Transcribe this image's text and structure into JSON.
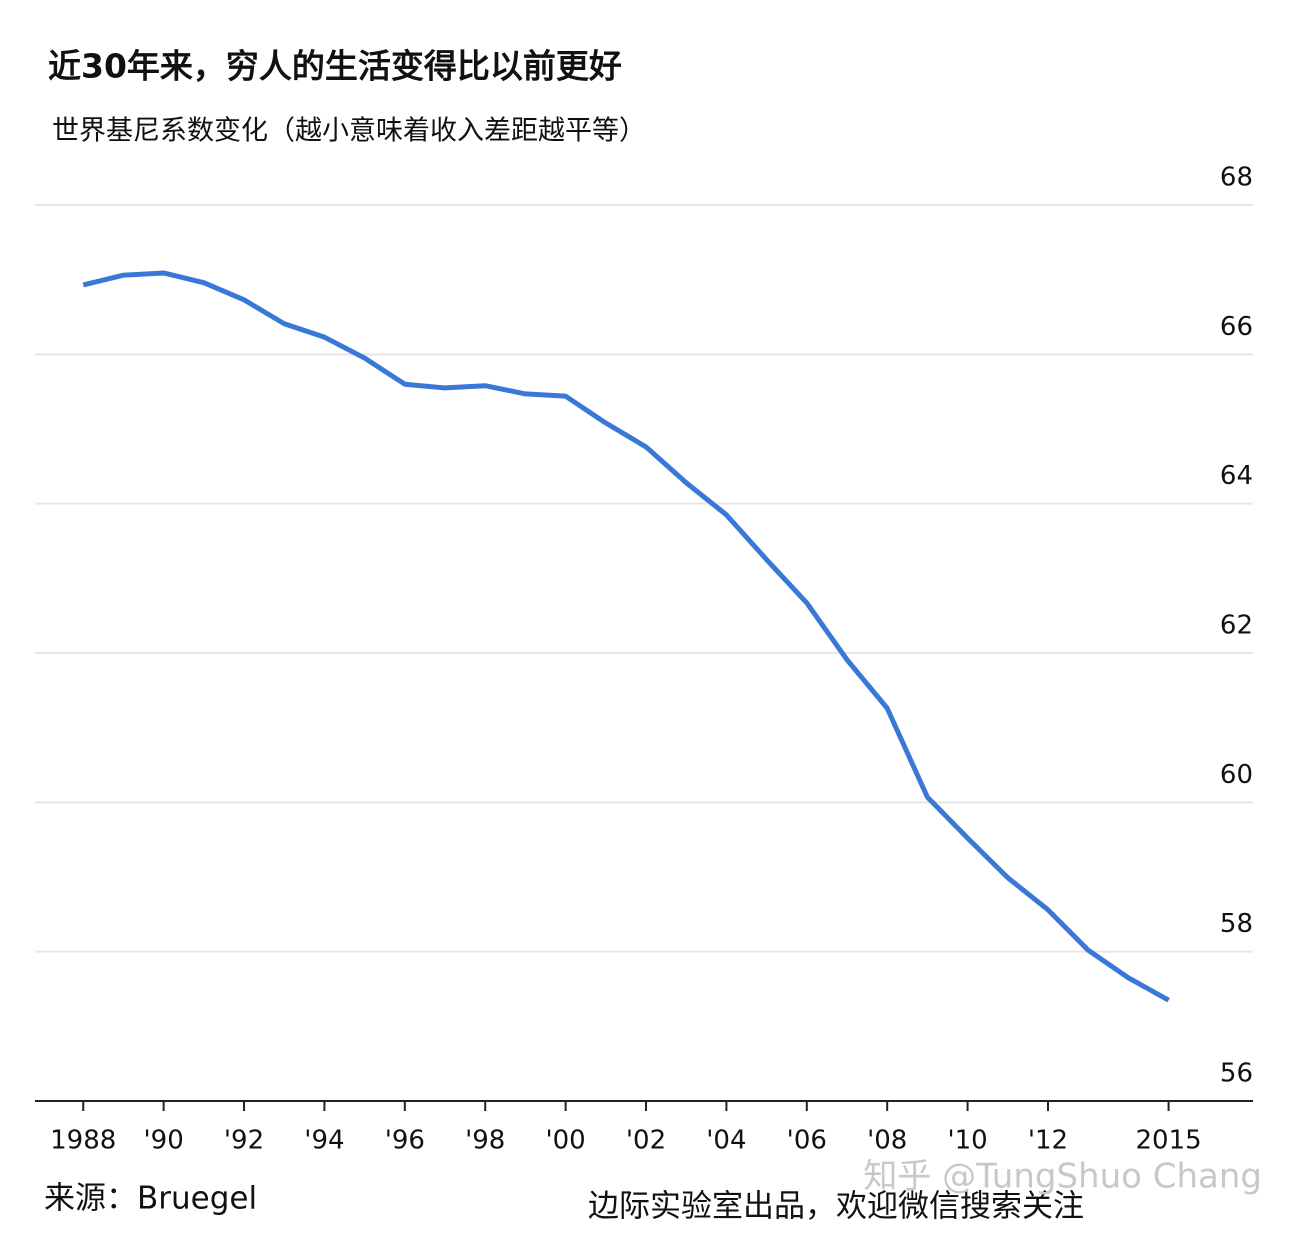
{
  "chart_data": {
    "type": "line",
    "title": "近30年来，穷人的生活变得比以前更好",
    "subtitle": "世界基尼系数变化（越小意味着收入差距越平等）",
    "source": "来源：Bruegel",
    "footer": "边际实验室出品，欢迎微信搜索关注",
    "watermark": "知乎 @TungShuo Chang",
    "x": [
      1988,
      1989,
      1990,
      1991,
      1992,
      1993,
      1994,
      1995,
      1996,
      1997,
      1998,
      1999,
      2000,
      2001,
      2002,
      2003,
      2004,
      2005,
      2006,
      2007,
      2008,
      2009,
      2010,
      2011,
      2012,
      2013,
      2014,
      2015
    ],
    "series": [
      {
        "color": "#3a78d8",
        "values": [
          66.93,
          67.06,
          67.09,
          66.96,
          66.73,
          66.41,
          66.23,
          65.95,
          65.6,
          65.55,
          65.58,
          65.47,
          65.44,
          65.08,
          64.76,
          64.28,
          63.85,
          63.25,
          62.67,
          61.91,
          61.26,
          60.07,
          59.52,
          58.99,
          58.56,
          58.02,
          57.65,
          57.35
        ]
      }
    ],
    "xlim": [
      1986.8,
      2017.1
    ],
    "xticks": [
      1988,
      {
        "value": 1990,
        "label": "'90"
      },
      {
        "value": 1992,
        "label": "'92"
      },
      {
        "value": 1994,
        "label": "'94"
      },
      {
        "value": 1996,
        "label": "'96"
      },
      {
        "value": 1998,
        "label": "'98"
      },
      {
        "value": 2000,
        "label": "'00"
      },
      {
        "value": 2002,
        "label": "'02"
      },
      {
        "value": 2004,
        "label": "'04"
      },
      {
        "value": 2006,
        "label": "'06"
      },
      {
        "value": 2008,
        "label": "'08"
      },
      {
        "value": 2010,
        "label": "'10"
      },
      {
        "value": 2012,
        "label": "'12"
      },
      2015
    ],
    "ylim": [
      56,
      68
    ],
    "yticks": [
      56,
      58,
      60,
      62,
      64,
      66,
      68
    ],
    "grid": true
  }
}
